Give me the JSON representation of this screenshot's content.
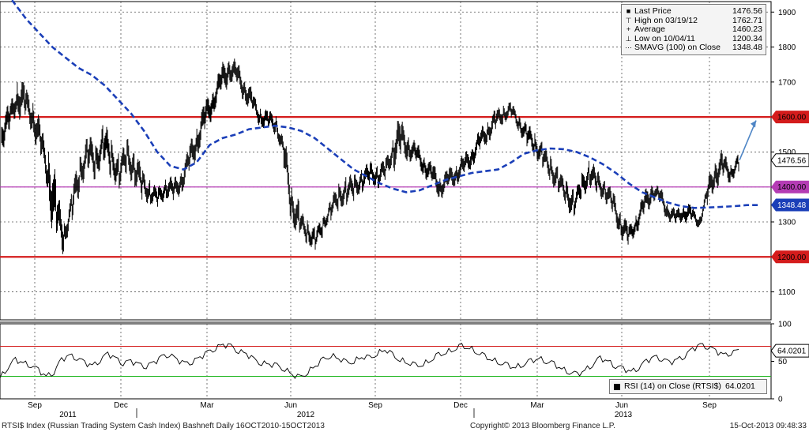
{
  "chart_data": [
    {
      "type": "line",
      "title": "RTSI$ Index (Russian Trading System Cash Index) Bashneft",
      "frequency": "Daily",
      "date_range": "16OCT2010-15OCT2013",
      "y_axis_side": "right",
      "ylim": [
        1020,
        1930
      ],
      "yticks": [
        1100,
        1200,
        1300,
        1400,
        1500,
        1600,
        1700,
        1800,
        1900
      ],
      "grid": true,
      "x_tick_labels": [
        "Sep",
        "Dec",
        "Mar",
        "Jun",
        "Sep",
        "Dec",
        "Mar",
        "Jun",
        "Sep"
      ],
      "year_labels": [
        "2011",
        "2012",
        "2013"
      ],
      "series": [
        {
          "name": "Last Price",
          "color": "#000000",
          "style": "bar (high/low)",
          "values": [
            [
              1555,
              1480,
              1600
            ],
            [
              1590,
              1540,
              1640
            ],
            [
              1660,
              1560,
              1700
            ],
            [
              1640,
              1570,
              1680
            ],
            [
              1600,
              1520,
              1650
            ],
            [
              1530,
              1470,
              1590
            ],
            [
              1430,
              1260,
              1500
            ],
            [
              1320,
              1230,
              1380
            ],
            [
              1260,
              1210,
              1300
            ],
            [
              1350,
              1290,
              1420
            ],
            [
              1440,
              1380,
              1500
            ],
            [
              1500,
              1430,
              1560
            ],
            [
              1470,
              1400,
              1520
            ],
            [
              1530,
              1460,
              1600
            ],
            [
              1480,
              1420,
              1540
            ],
            [
              1440,
              1380,
              1490
            ],
            [
              1490,
              1430,
              1550
            ],
            [
              1450,
              1390,
              1510
            ],
            [
              1410,
              1370,
              1460
            ],
            [
              1380,
              1350,
              1420
            ],
            [
              1370,
              1340,
              1410
            ],
            [
              1400,
              1360,
              1440
            ],
            [
              1390,
              1350,
              1430
            ],
            [
              1420,
              1380,
              1470
            ],
            [
              1480,
              1420,
              1530
            ],
            [
              1540,
              1480,
              1600
            ],
            [
              1600,
              1540,
              1650
            ],
            [
              1650,
              1600,
              1700
            ],
            [
              1700,
              1640,
              1750
            ],
            [
              1740,
              1690,
              1780
            ],
            [
              1720,
              1670,
              1760
            ],
            [
              1680,
              1630,
              1720
            ],
            [
              1640,
              1600,
              1670
            ],
            [
              1600,
              1570,
              1640
            ],
            [
              1590,
              1550,
              1620
            ],
            [
              1580,
              1540,
              1610
            ],
            [
              1500,
              1420,
              1560
            ],
            [
              1350,
              1290,
              1420
            ],
            [
              1300,
              1260,
              1340
            ],
            [
              1270,
              1230,
              1310
            ],
            [
              1250,
              1220,
              1290
            ],
            [
              1290,
              1260,
              1320
            ],
            [
              1340,
              1300,
              1380
            ],
            [
              1370,
              1320,
              1410
            ],
            [
              1390,
              1340,
              1430
            ],
            [
              1400,
              1360,
              1440
            ],
            [
              1420,
              1380,
              1460
            ],
            [
              1440,
              1400,
              1480
            ],
            [
              1430,
              1390,
              1470
            ],
            [
              1450,
              1410,
              1490
            ],
            [
              1510,
              1450,
              1600
            ],
            [
              1540,
              1480,
              1590
            ],
            [
              1510,
              1470,
              1550
            ],
            [
              1490,
              1450,
              1530
            ],
            [
              1460,
              1420,
              1500
            ],
            [
              1430,
              1380,
              1470
            ],
            [
              1400,
              1360,
              1440
            ],
            [
              1420,
              1380,
              1460
            ],
            [
              1440,
              1400,
              1480
            ],
            [
              1460,
              1420,
              1500
            ],
            [
              1490,
              1450,
              1530
            ],
            [
              1530,
              1490,
              1570
            ],
            [
              1560,
              1520,
              1600
            ],
            [
              1590,
              1550,
              1620
            ],
            [
              1610,
              1580,
              1640
            ],
            [
              1620,
              1590,
              1645
            ],
            [
              1580,
              1540,
              1610
            ],
            [
              1550,
              1510,
              1590
            ],
            [
              1520,
              1480,
              1560
            ],
            [
              1490,
              1450,
              1530
            ],
            [
              1450,
              1400,
              1490
            ],
            [
              1420,
              1380,
              1460
            ],
            [
              1380,
              1320,
              1420
            ],
            [
              1350,
              1310,
              1390
            ],
            [
              1400,
              1360,
              1450
            ],
            [
              1440,
              1390,
              1480
            ],
            [
              1410,
              1370,
              1450
            ],
            [
              1390,
              1340,
              1420
            ],
            [
              1350,
              1300,
              1390
            ],
            [
              1290,
              1250,
              1340
            ],
            [
              1260,
              1230,
              1300
            ],
            [
              1300,
              1260,
              1340
            ],
            [
              1350,
              1310,
              1400
            ],
            [
              1390,
              1350,
              1410
            ],
            [
              1370,
              1330,
              1400
            ],
            [
              1330,
              1300,
              1360
            ],
            [
              1310,
              1280,
              1340
            ],
            [
              1330,
              1290,
              1360
            ],
            [
              1320,
              1290,
              1340
            ],
            [
              1300,
              1280,
              1330
            ],
            [
              1380,
              1320,
              1420
            ],
            [
              1440,
              1380,
              1490
            ],
            [
              1460,
              1420,
              1500
            ],
            [
              1440,
              1410,
              1470
            ],
            [
              1470,
              1430,
              1500
            ]
          ]
        },
        {
          "name": "SMAVG (100) on Close",
          "color": "#1b3fb8",
          "style": "dashed",
          "values": [
            1970,
            1930,
            1880,
            1840,
            1800,
            1770,
            1740,
            1720,
            1690,
            1650,
            1610,
            1560,
            1500,
            1460,
            1450,
            1470,
            1520,
            1540,
            1550,
            1565,
            1570,
            1575,
            1570,
            1560,
            1540,
            1510,
            1480,
            1450,
            1430,
            1410,
            1395,
            1385,
            1390,
            1405,
            1420,
            1430,
            1440,
            1445,
            1450,
            1470,
            1495,
            1505,
            1510,
            1508,
            1500,
            1485,
            1465,
            1440,
            1410,
            1385,
            1370,
            1355,
            1345,
            1340,
            1341,
            1343,
            1345,
            1348,
            1348
          ]
        }
      ],
      "horizontal_lines": [
        {
          "value": 1600,
          "label": "1600.00",
          "color": "#d41c1c"
        },
        {
          "value": 1400,
          "label": "1400.00",
          "color": "#b43cb4"
        },
        {
          "value": 1200,
          "label": "1200.00",
          "color": "#d41c1c"
        }
      ],
      "last_value_tags": [
        {
          "value": 1476.56,
          "label": "1476.56",
          "color": "#000000"
        },
        {
          "value": 1348.48,
          "label": "1348.48",
          "color": "#1b3fb8"
        }
      ],
      "arrow": {
        "from": [
          1476.56
        ],
        "to": [
          1590
        ],
        "color": "#4f86c6"
      },
      "legend": {
        "placement": "top-right",
        "rows": [
          {
            "symbol": "■",
            "label": "Last Price",
            "value": "1476.56"
          },
          {
            "symbol": "⊤",
            "label": "High on 03/19/12",
            "value": "1762.71"
          },
          {
            "symbol": "+",
            "label": "Average",
            "value": "1460.23"
          },
          {
            "symbol": "⊥",
            "label": "Low on 10/04/11",
            "value": "1200.34"
          },
          {
            "symbol": "⋯",
            "label": "SMAVG (100) on Close",
            "value": "1348.48"
          }
        ]
      }
    },
    {
      "type": "line",
      "title": "RSI (14) on Close (RTSI$)",
      "ylim": [
        0,
        100
      ],
      "yticks": [
        0,
        50,
        100
      ],
      "reference_lines": [
        {
          "value": 70,
          "color": "#d41c1c"
        },
        {
          "value": 30,
          "color": "#1bb51b"
        }
      ],
      "last_value": {
        "value": 64.0201,
        "label": "64.0201"
      },
      "series": [
        {
          "name": "RSI (14) on Close (RTSI$)",
          "color": "#000000",
          "values": [
            28,
            42,
            52,
            48,
            45,
            38,
            30,
            36,
            52,
            58,
            55,
            48,
            44,
            52,
            60,
            54,
            48,
            50,
            46,
            44,
            48,
            56,
            60,
            52,
            47,
            50,
            55,
            62,
            68,
            72,
            70,
            64,
            60,
            52,
            48,
            46,
            44,
            40,
            32,
            28,
            36,
            44,
            52,
            58,
            54,
            48,
            50,
            56,
            54,
            60,
            66,
            58,
            52,
            48,
            44,
            46,
            52,
            58,
            62,
            66,
            70,
            68,
            62,
            56,
            52,
            48,
            44,
            42,
            46,
            50,
            54,
            50,
            46,
            40,
            36,
            32,
            38,
            46,
            54,
            50,
            44,
            40,
            36,
            42,
            50,
            56,
            54,
            48,
            52,
            58,
            66,
            72,
            70,
            64,
            58,
            62,
            64
          ]
        }
      ]
    }
  ],
  "footer": {
    "left": "RTSI$ Index (Russian Trading System Cash Index) Bashneft  Daily 16OCT2010-15OCT2013",
    "center": "Copyright© 2013 Bloomberg Finance L.P.",
    "right": "15-Oct-2013 09:48:33"
  }
}
